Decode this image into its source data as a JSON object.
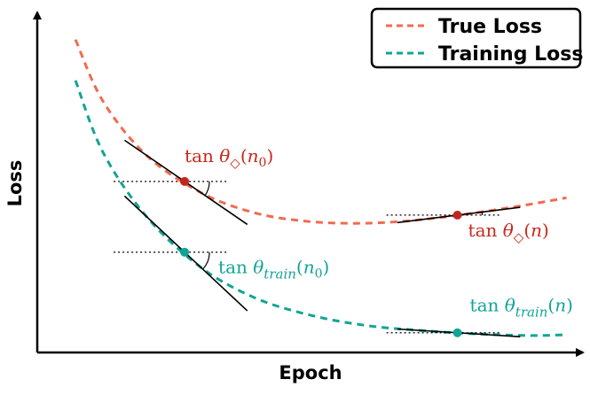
{
  "chart_data": {
    "type": "line",
    "xlabel": "Epoch",
    "ylabel": "Loss",
    "grid": false,
    "legend_placement": "top-right",
    "colors": {
      "true_loss": "#f26a4f",
      "training_loss": "#11a495",
      "point_true": "#c0281e",
      "point_train": "#11a495",
      "text_true": "#c8281a",
      "text_train": "#11a495",
      "tangent": "#000000"
    },
    "series": [
      {
        "name": "True Loss",
        "style": "dashed",
        "points": [
          [
            0.07,
            0.92
          ],
          [
            0.12,
            0.74
          ],
          [
            0.2,
            0.58
          ],
          [
            0.3,
            0.47
          ],
          [
            0.4,
            0.41
          ],
          [
            0.5,
            0.385
          ],
          [
            0.6,
            0.38
          ],
          [
            0.7,
            0.39
          ],
          [
            0.8,
            0.41
          ],
          [
            0.9,
            0.435
          ],
          [
            0.97,
            0.455
          ]
        ]
      },
      {
        "name": "Training Loss",
        "style": "dashed",
        "points": [
          [
            0.07,
            0.8
          ],
          [
            0.12,
            0.59
          ],
          [
            0.2,
            0.4
          ],
          [
            0.3,
            0.25
          ],
          [
            0.4,
            0.16
          ],
          [
            0.5,
            0.11
          ],
          [
            0.6,
            0.08
          ],
          [
            0.7,
            0.065
          ],
          [
            0.8,
            0.055
          ],
          [
            0.9,
            0.05
          ],
          [
            0.97,
            0.052
          ]
        ]
      }
    ],
    "annotations": [
      {
        "id": "true_n0",
        "curve": "True Loss",
        "x": 0.27,
        "base": "tan θ",
        "sub": "◇",
        "arg": "n",
        "arg_sub": "0"
      },
      {
        "id": "train_n0",
        "curve": "Training Loss",
        "x": 0.27,
        "base": "tan θ",
        "sub": "train",
        "arg": "n",
        "arg_sub": "0"
      },
      {
        "id": "true_n",
        "curve": "True Loss",
        "x": 0.77,
        "base": "tan θ",
        "sub": "◇",
        "arg": "n",
        "arg_sub": ""
      },
      {
        "id": "train_n",
        "curve": "Training Loss",
        "x": 0.77,
        "base": "tan θ",
        "sub": "train",
        "arg": "n",
        "arg_sub": ""
      }
    ]
  }
}
